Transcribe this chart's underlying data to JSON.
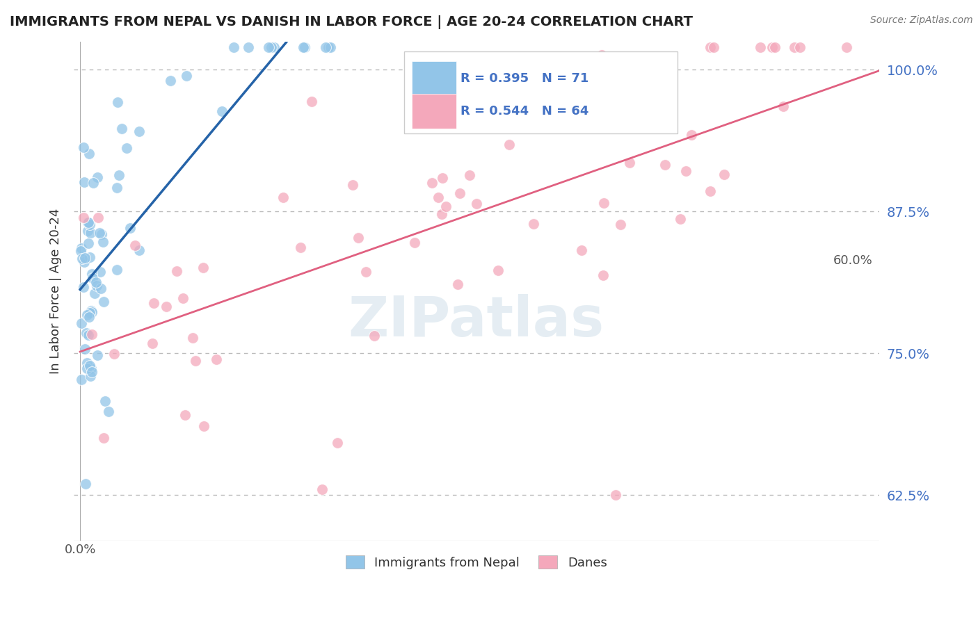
{
  "title": "IMMIGRANTS FROM NEPAL VS DANISH IN LABOR FORCE | AGE 20-24 CORRELATION CHART",
  "source_text": "Source: ZipAtlas.com",
  "ylabel": "In Labor Force | Age 20-24",
  "watermark": "ZIPatlas",
  "xlim": [
    -0.005,
    0.62
  ],
  "ylim": [
    0.585,
    1.025
  ],
  "yticks": [
    0.625,
    0.75,
    0.875,
    1.0
  ],
  "ytick_labels": [
    "62.5%",
    "75.0%",
    "87.5%",
    "100.0%"
  ],
  "xtick_left_label": "0.0%",
  "xtick_right_label": "60.0%",
  "nepal_R": 0.395,
  "nepal_N": 71,
  "danes_R": 0.544,
  "danes_N": 64,
  "nepal_color": "#92C5E8",
  "danes_color": "#F4A8BB",
  "nepal_line_color": "#2563a8",
  "danes_line_color": "#e06080",
  "background_color": "#ffffff",
  "grid_color": "#bbbbbb",
  "legend_text_color": "#4472c4",
  "title_color": "#222222",
  "ylabel_color": "#333333",
  "ytick_color": "#4472c4",
  "xtick_color": "#555555"
}
